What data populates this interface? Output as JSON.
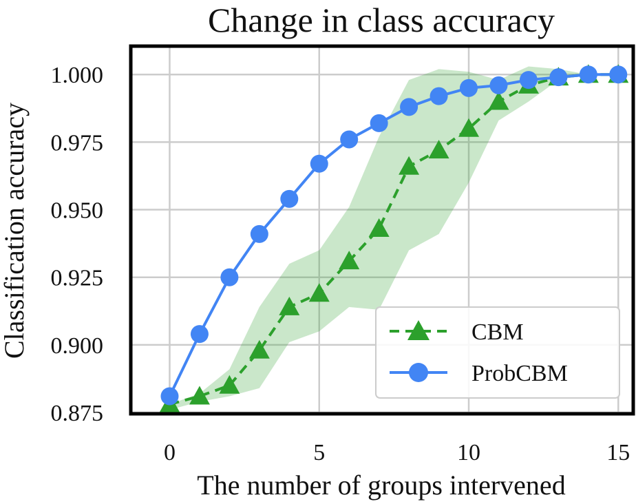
{
  "chart_data": {
    "type": "line",
    "title": "Change in class accuracy",
    "xlabel": "The number of groups intervened",
    "ylabel": "Classification accuracy",
    "xlim": [
      -1.3,
      15.5
    ],
    "ylim": [
      0.8745,
      1.0105
    ],
    "xticks": [
      0,
      5,
      10,
      15
    ],
    "xtick_labels": [
      "0",
      "5",
      "10",
      "15"
    ],
    "yticks": [
      0.875,
      0.9,
      0.925,
      0.95,
      0.975,
      1.0
    ],
    "ytick_labels": [
      "0.875",
      "0.900",
      "0.925",
      "0.950",
      "0.975",
      "1.000"
    ],
    "grid": true,
    "legend_position": "bottom-right",
    "x": [
      0,
      1,
      2,
      3,
      4,
      5,
      6,
      7,
      8,
      9,
      10,
      11,
      12,
      13,
      14,
      15
    ],
    "series": [
      {
        "name": "CBM",
        "color": "#2ca02c",
        "style": "dashed",
        "marker": "triangle",
        "values": [
          0.878,
          0.881,
          0.885,
          0.898,
          0.914,
          0.919,
          0.931,
          0.943,
          0.966,
          0.972,
          0.98,
          0.99,
          0.996,
          0.999,
          1.0,
          1.0
        ],
        "band_lower": [
          0.876,
          0.879,
          0.881,
          0.884,
          0.901,
          0.905,
          0.914,
          0.913,
          0.935,
          0.941,
          0.96,
          0.983,
          0.99,
          0.998,
          1.0,
          1.0
        ],
        "band_upper": [
          0.878,
          0.882,
          0.891,
          0.914,
          0.93,
          0.935,
          0.951,
          0.977,
          0.998,
          1.002,
          1.001,
          0.998,
          1.003,
          1.002,
          1.0,
          1.0
        ]
      },
      {
        "name": "ProbCBM",
        "color": "#4285f4",
        "style": "solid",
        "marker": "circle",
        "values": [
          0.881,
          0.904,
          0.925,
          0.941,
          0.954,
          0.967,
          0.976,
          0.982,
          0.988,
          0.992,
          0.995,
          0.996,
          0.998,
          0.999,
          1.0,
          1.0
        ]
      }
    ]
  }
}
